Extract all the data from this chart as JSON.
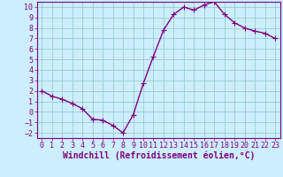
{
  "x": [
    0,
    1,
    2,
    3,
    4,
    5,
    6,
    7,
    8,
    9,
    10,
    11,
    12,
    13,
    14,
    15,
    16,
    17,
    18,
    19,
    20,
    21,
    22,
    23
  ],
  "y": [
    2,
    1.5,
    1.2,
    0.8,
    0.3,
    -0.7,
    -0.8,
    -1.3,
    -2.0,
    -0.3,
    2.7,
    5.3,
    7.8,
    9.3,
    10.0,
    9.7,
    10.2,
    10.5,
    9.3,
    8.5,
    8.0,
    7.7,
    7.5,
    7.0
  ],
  "line_color": "#800080",
  "marker": "+",
  "markersize": 4,
  "linewidth": 1.0,
  "xlabel": "Windchill (Refroidissement éolien,°C)",
  "background_color": "#cceeff",
  "grid_color": "#99cccc",
  "xlim": [
    -0.5,
    23.5
  ],
  "ylim": [
    -2.5,
    10.5
  ],
  "yticks": [
    -2,
    -1,
    0,
    1,
    2,
    3,
    4,
    5,
    6,
    7,
    8,
    9,
    10
  ],
  "xticks": [
    0,
    1,
    2,
    3,
    4,
    5,
    6,
    7,
    8,
    9,
    10,
    11,
    12,
    13,
    14,
    15,
    16,
    17,
    18,
    19,
    20,
    21,
    22,
    23
  ],
  "tick_color": "#800080",
  "label_color": "#800080",
  "tick_fontsize": 6,
  "xlabel_fontsize": 7
}
